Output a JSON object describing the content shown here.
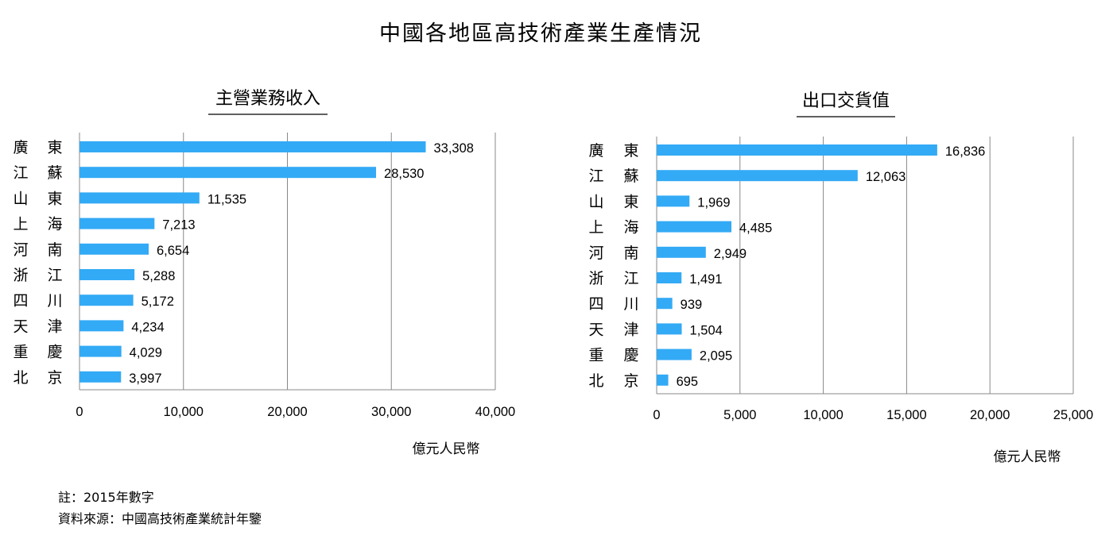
{
  "title": "中國各地區高技術產業生產情況",
  "categories": [
    "廣 東",
    "江 蘇",
    "山 東",
    "上 海",
    "河 南",
    "浙 江",
    "四 川",
    "天 津",
    "重 慶",
    "北 京"
  ],
  "bar_color": "#33aaf5",
  "grid_color": "#888888",
  "chart_data": [
    {
      "type": "bar",
      "orientation": "horizontal",
      "title": "主營業務收入",
      "categories": [
        "廣 東",
        "江 蘇",
        "山 東",
        "上 海",
        "河 南",
        "浙 江",
        "四 川",
        "天 津",
        "重 慶",
        "北 京"
      ],
      "values": [
        33308,
        28530,
        11535,
        7213,
        6654,
        5288,
        5172,
        4234,
        4029,
        3997
      ],
      "value_labels": [
        "33,308",
        "28,530",
        "11,535",
        "7,213",
        "6,654",
        "5,288",
        "5,172",
        "4,234",
        "4,029",
        "3,997"
      ],
      "xlim": [
        0,
        40000
      ],
      "xticks": [
        0,
        10000,
        20000,
        30000,
        40000
      ],
      "xtick_labels": [
        "0",
        "10,000",
        "20,000",
        "30,000",
        "40,000"
      ],
      "xlabel": "億元人民幣",
      "grid": "vertical"
    },
    {
      "type": "bar",
      "orientation": "horizontal",
      "title": "出口交貨值",
      "categories": [
        "廣 東",
        "江 蘇",
        "山 東",
        "上 海",
        "河 南",
        "浙 江",
        "四 川",
        "天 津",
        "重 慶",
        "北 京"
      ],
      "values": [
        16836,
        12063,
        1969,
        4485,
        2949,
        1491,
        939,
        1504,
        2095,
        695
      ],
      "value_labels": [
        "16,836",
        "12,063",
        "1,969",
        "4,485",
        "2,949",
        "1,491",
        "939",
        "1,504",
        "2,095",
        "695"
      ],
      "xlim": [
        0,
        25000
      ],
      "xticks": [
        0,
        5000,
        10000,
        15000,
        20000,
        25000
      ],
      "xtick_labels": [
        "0",
        "5,000",
        "10,000",
        "15,000",
        "20,000",
        "25,000"
      ],
      "xlabel": "億元人民幣",
      "grid": "vertical"
    }
  ],
  "notes": {
    "note": "註：2015年數字",
    "source": "資料來源：中國高技術產業統計年鑒"
  }
}
